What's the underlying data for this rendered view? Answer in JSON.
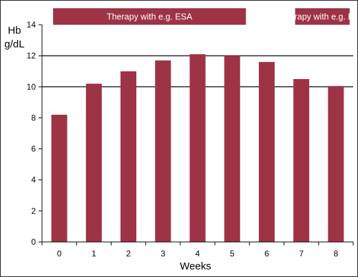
{
  "chart_data": {
    "type": "bar",
    "categories": [
      "0",
      "1",
      "2",
      "3",
      "4",
      "5",
      "6",
      "7",
      "8"
    ],
    "values": [
      8.2,
      10.2,
      11.0,
      11.7,
      12.1,
      12.0,
      11.6,
      10.5,
      10.05
    ],
    "ylabel_line1": "Hb",
    "ylabel_line2": "g/dL",
    "xlabel": "Weeks",
    "ylim": [
      0,
      14
    ],
    "yticks": [
      "0",
      "2",
      "4",
      "6",
      "8",
      "10",
      "12",
      "14"
    ],
    "reference_lines": [
      10,
      12
    ],
    "bar_color": "#9e3346",
    "annotations": [
      {
        "text": "Therapy with e.g. ESA",
        "from": "0",
        "to": "5"
      },
      {
        "text": "Therapy with e.g. ESA",
        "from": "7",
        "to": "8"
      }
    ]
  }
}
